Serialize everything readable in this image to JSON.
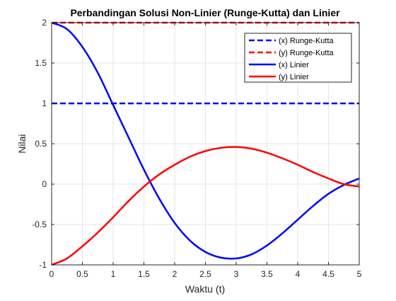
{
  "chart_data": {
    "type": "line",
    "title": "Perbandingan Solusi Non-Linier (Runge-Kutta) dan Linier",
    "xlabel": "Waktu (t)",
    "ylabel": "Nilai",
    "xlim": [
      0,
      5
    ],
    "ylim": [
      -1,
      2
    ],
    "xticks": [
      0,
      0.5,
      1,
      1.5,
      2,
      2.5,
      3,
      3.5,
      4,
      4.5,
      5
    ],
    "xtick_labels": [
      "0",
      "0.5",
      "1",
      "1.5",
      "2",
      "2.5",
      "3",
      "3.5",
      "4",
      "4.5",
      "5"
    ],
    "yticks": [
      -1,
      -0.5,
      0,
      0.5,
      1,
      1.5,
      2
    ],
    "ytick_labels": [
      "-1",
      "-0.5",
      "0",
      "0.5",
      "1",
      "1.5",
      "2"
    ],
    "grid": true,
    "box": true,
    "legend_position": "top-right",
    "series": [
      {
        "name": "(x) Runge-Kutta",
        "color": "#0000ff",
        "dash": "dashed",
        "x": [
          0,
          0.5,
          1,
          1.5,
          2,
          2.5,
          3,
          3.5,
          4,
          4.5,
          5
        ],
        "y": [
          1,
          1,
          1,
          1,
          1,
          1,
          1,
          1,
          1,
          1,
          1
        ]
      },
      {
        "name": "(y) Runge-Kutta",
        "color": "#ff0000",
        "dash": "dashed",
        "x": [
          0,
          0.5,
          1,
          1.5,
          2,
          2.5,
          3,
          3.5,
          4,
          4.5,
          5
        ],
        "y": [
          2,
          2,
          2,
          2,
          2,
          2,
          2,
          2,
          2,
          2,
          2
        ]
      },
      {
        "name": "(x) Linier",
        "color": "#0000ff",
        "dash": "solid",
        "x": [
          0,
          0.25,
          0.5,
          0.75,
          1,
          1.25,
          1.5,
          1.75,
          2,
          2.25,
          2.5,
          2.75,
          3,
          3.25,
          3.5,
          3.75,
          4,
          4.25,
          4.5,
          4.75,
          5
        ],
        "y": [
          2,
          1.92,
          1.7,
          1.38,
          0.98,
          0.58,
          0.18,
          -0.18,
          -0.48,
          -0.7,
          -0.84,
          -0.91,
          -0.92,
          -0.87,
          -0.76,
          -0.61,
          -0.44,
          -0.27,
          -0.12,
          -0.01,
          0.07
        ]
      },
      {
        "name": "(y) Linier",
        "color": "#ff0000",
        "dash": "solid",
        "x": [
          0,
          0.25,
          0.5,
          0.75,
          1,
          1.25,
          1.5,
          1.75,
          2,
          2.25,
          2.5,
          2.75,
          3,
          3.25,
          3.5,
          3.75,
          4,
          4.25,
          4.5,
          4.75,
          5
        ],
        "y": [
          -1,
          -0.92,
          -0.77,
          -0.6,
          -0.41,
          -0.21,
          -0.03,
          0.12,
          0.24,
          0.34,
          0.41,
          0.45,
          0.46,
          0.44,
          0.39,
          0.32,
          0.24,
          0.15,
          0.07,
          0.0,
          -0.03
        ]
      }
    ]
  }
}
